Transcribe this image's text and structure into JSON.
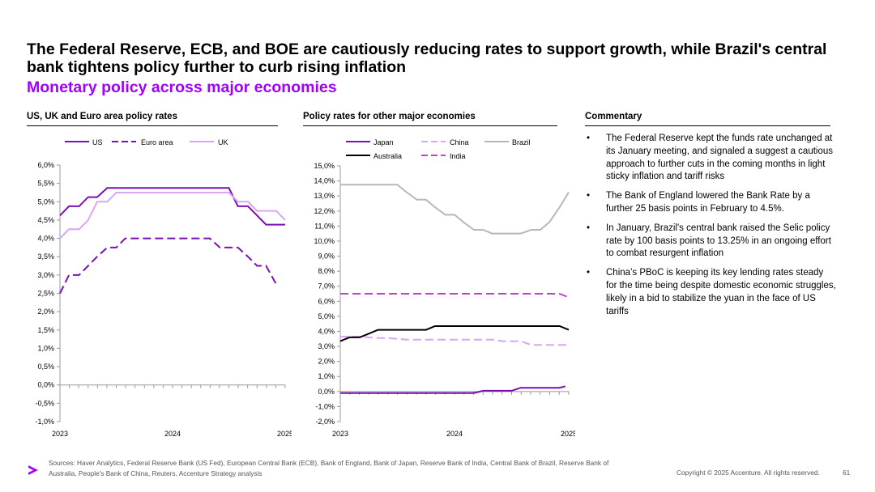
{
  "header": {
    "title": "The Federal Reserve, ECB, and BOE are cautiously reducing rates to support growth, while Brazil's central bank tightens policy further to curb rising inflation",
    "subtitle": "Monetary policy across major economies"
  },
  "colors": {
    "accent": "#A100FF",
    "us": "#7B0FB5",
    "euro": "#7B0FB5",
    "uk": "#D9A6F5",
    "japan": "#7B0FB5",
    "china": "#D9A6F5",
    "brazil": "#B8B8B8",
    "australia": "#000000",
    "india": "#C040D0"
  },
  "sections": {
    "left_title": "US, UK and Euro area policy rates",
    "middle_title": "Policy rates for other major economies",
    "commentary_title": "Commentary"
  },
  "commentary": [
    "The Federal Reserve kept the funds rate unchanged at its January meeting, and signaled a suggest a cautious approach to further cuts in the coming months in light sticky inflation and tariff risks",
    "The Bank of England lowered the Bank Rate by a further 25 basis points in February to 4.5%.",
    "In January, Brazil's central bank raised the Selic policy rate by 100 basis points to 13.25% in an ongoing effort to combat resurgent inflation",
    "China’s PBoC is keeping its key lending rates steady for the time being despite domestic economic struggles, likely in a bid to stabilize the yuan in the face of US tariffs"
  ],
  "chart_data": [
    {
      "type": "line",
      "title": "US, UK and Euro area policy rates",
      "x_labels": [
        "2023",
        "2024",
        "2025"
      ],
      "x_range": [
        2023,
        2025
      ],
      "ylim": [
        -1.0,
        6.0
      ],
      "y_ticks": [
        "-1,0%",
        "-0,5%",
        "0,0%",
        "0,5%",
        "1,0%",
        "1,5%",
        "2,0%",
        "2,5%",
        "3,0%",
        "3,5%",
        "4,0%",
        "4,5%",
        "5,0%",
        "5,5%",
        "6,0%"
      ],
      "legend": [
        "US",
        "Euro area",
        "UK"
      ],
      "series": [
        {
          "name": "US",
          "style": "solid",
          "color": "#7B0FB5",
          "x": [
            2023.0,
            2023.08,
            2023.17,
            2023.25,
            2023.33,
            2023.42,
            2023.5,
            2023.58,
            2023.67,
            2023.75,
            2023.83,
            2023.92,
            2024.0,
            2024.08,
            2024.17,
            2024.25,
            2024.33,
            2024.42,
            2024.5,
            2024.58,
            2024.67,
            2024.75,
            2024.83,
            2024.92,
            2025.0
          ],
          "y": [
            4.625,
            4.875,
            4.875,
            5.125,
            5.125,
            5.375,
            5.375,
            5.375,
            5.375,
            5.375,
            5.375,
            5.375,
            5.375,
            5.375,
            5.375,
            5.375,
            5.375,
            5.375,
            5.375,
            4.875,
            4.875,
            4.625,
            4.375,
            4.375,
            4.375
          ]
        },
        {
          "name": "Euro area",
          "style": "dashed",
          "color": "#7B0FB5",
          "x": [
            2023.0,
            2023.08,
            2023.17,
            2023.25,
            2023.33,
            2023.42,
            2023.5,
            2023.58,
            2023.67,
            2023.75,
            2023.83,
            2023.92,
            2024.0,
            2024.08,
            2024.17,
            2024.25,
            2024.33,
            2024.42,
            2024.5,
            2024.58,
            2024.67,
            2024.75,
            2024.83,
            2024.92
          ],
          "y": [
            2.5,
            3.0,
            3.0,
            3.25,
            3.5,
            3.75,
            3.75,
            4.0,
            4.0,
            4.0,
            4.0,
            4.0,
            4.0,
            4.0,
            4.0,
            4.0,
            4.0,
            3.75,
            3.75,
            3.75,
            3.5,
            3.25,
            3.25,
            2.75
          ]
        },
        {
          "name": "UK",
          "style": "solid",
          "color": "#D9A6F5",
          "x": [
            2023.0,
            2023.08,
            2023.17,
            2023.25,
            2023.33,
            2023.42,
            2023.5,
            2023.58,
            2023.67,
            2023.75,
            2023.83,
            2023.92,
            2024.0,
            2024.08,
            2024.17,
            2024.25,
            2024.33,
            2024.42,
            2024.5,
            2024.58,
            2024.67,
            2024.75,
            2024.83,
            2024.92,
            2025.0
          ],
          "y": [
            4.0,
            4.25,
            4.25,
            4.5,
            5.0,
            5.0,
            5.25,
            5.25,
            5.25,
            5.25,
            5.25,
            5.25,
            5.25,
            5.25,
            5.25,
            5.25,
            5.25,
            5.25,
            5.25,
            5.0,
            5.0,
            4.75,
            4.75,
            4.75,
            4.5
          ]
        }
      ]
    },
    {
      "type": "line",
      "title": "Policy rates for other major economies",
      "x_labels": [
        "2023",
        "2024",
        "2025"
      ],
      "x_range": [
        2023,
        2025
      ],
      "ylim": [
        -2.0,
        15.0
      ],
      "y_ticks": [
        "-2,0%",
        "-1,0%",
        "0,0%",
        "1,0%",
        "2,0%",
        "3,0%",
        "4,0%",
        "5,0%",
        "6,0%",
        "7,0%",
        "8,0%",
        "9,0%",
        "10,0%",
        "11,0%",
        "12,0%",
        "13,0%",
        "14,0%",
        "15,0%"
      ],
      "legend": [
        "Japan",
        "China",
        "Brazil",
        "Australia",
        "India"
      ],
      "series": [
        {
          "name": "Japan",
          "style": "solid",
          "color": "#7B0FB5",
          "x": [
            2023.0,
            2024.17,
            2024.25,
            2024.42,
            2024.5,
            2024.58,
            2024.92,
            2024.97
          ],
          "y": [
            -0.1,
            -0.1,
            0.05,
            0.05,
            0.05,
            0.25,
            0.25,
            0.35
          ]
        },
        {
          "name": "China",
          "style": "dashed",
          "color": "#D9A6F5",
          "x": [
            2023.0,
            2023.08,
            2023.17,
            2023.33,
            2023.42,
            2023.58,
            2024.0,
            2024.33,
            2024.42,
            2024.58,
            2024.67,
            2025.0
          ],
          "y": [
            3.65,
            3.65,
            3.65,
            3.55,
            3.55,
            3.45,
            3.45,
            3.45,
            3.35,
            3.35,
            3.1,
            3.1
          ]
        },
        {
          "name": "Brazil",
          "style": "solid",
          "color": "#B8B8B8",
          "x": [
            2023.0,
            2023.08,
            2023.17,
            2023.25,
            2023.33,
            2023.42,
            2023.5,
            2023.58,
            2023.67,
            2023.75,
            2023.83,
            2023.92,
            2024.0,
            2024.08,
            2024.17,
            2024.25,
            2024.33,
            2024.42,
            2024.5,
            2024.58,
            2024.67,
            2024.75,
            2024.83,
            2024.92,
            2025.0
          ],
          "y": [
            13.75,
            13.75,
            13.75,
            13.75,
            13.75,
            13.75,
            13.75,
            13.25,
            12.75,
            12.75,
            12.25,
            11.75,
            11.75,
            11.25,
            10.75,
            10.75,
            10.5,
            10.5,
            10.5,
            10.5,
            10.75,
            10.75,
            11.25,
            12.25,
            13.25
          ]
        },
        {
          "name": "Australia",
          "style": "solid",
          "color": "#000000",
          "x": [
            2023.0,
            2023.08,
            2023.17,
            2023.25,
            2023.33,
            2023.42,
            2023.5,
            2023.58,
            2023.67,
            2023.75,
            2023.83,
            2023.92,
            2024.0,
            2024.5,
            2024.92,
            2025.0
          ],
          "y": [
            3.35,
            3.6,
            3.6,
            3.85,
            4.1,
            4.1,
            4.1,
            4.1,
            4.1,
            4.1,
            4.35,
            4.35,
            4.35,
            4.35,
            4.35,
            4.1
          ]
        },
        {
          "name": "India",
          "style": "dashed",
          "color": "#C040D0",
          "x": [
            2023.0,
            2023.08,
            2023.17,
            2024.92,
            2025.0
          ],
          "y": [
            6.5,
            6.5,
            6.5,
            6.5,
            6.25
          ]
        }
      ]
    }
  ],
  "footer": {
    "sources": "Sources: Haver Analytics, Federal Reserve Bank (US Fed), European Central Bank (ECB), Bank of England, Bank of Japan, Reserve Bank of India, Central Bank of Brazil, Reserve Bank of Australia, People's Bank of China, Reuters, Accenture Strategy analysis",
    "copyright": "Copyright © 2025 Accenture. All rights reserved.",
    "page_number": "61",
    "logo_alt": "Accenture logo"
  }
}
